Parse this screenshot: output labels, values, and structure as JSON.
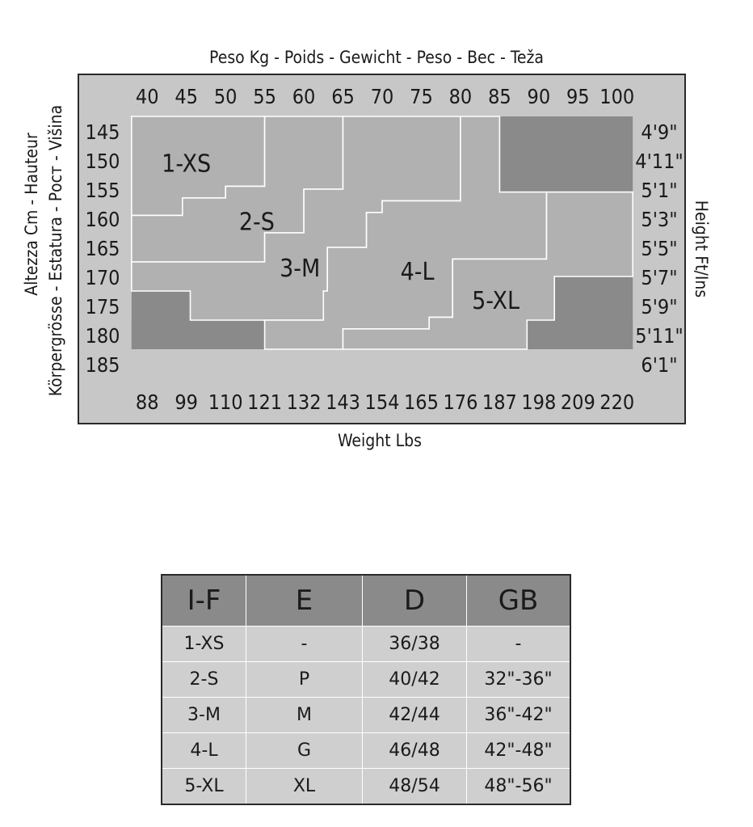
{
  "chart_data": {
    "type": "heatmap",
    "title": "Peso Kg - Poids - Gewicht - Peso - Bec - Teža",
    "xlabel": "Weight Lbs",
    "ylabel_left_1": "Altezza Cm - Hauteur",
    "ylabel_left_2": "Körpergrösse - Estatura - Рост - Višina",
    "ylabel_right": "Height Ft/Ins",
    "x_kg_ticks": [
      "40",
      "45",
      "50",
      "55",
      "60",
      "65",
      "70",
      "75",
      "80",
      "85",
      "90",
      "95",
      "100"
    ],
    "x_kg_range": [
      37.5,
      102.5
    ],
    "x_lbs_ticks": [
      {
        "kg": 40,
        "label": "88"
      },
      {
        "kg": 45,
        "label": "99"
      },
      {
        "kg": 50,
        "label": "110"
      },
      {
        "kg": 55,
        "label": "121"
      },
      {
        "kg": 60,
        "label": "132"
      },
      {
        "kg": 65,
        "label": "143"
      },
      {
        "kg": 70,
        "label": "154"
      },
      {
        "kg": 75,
        "label": "165"
      },
      {
        "kg": 80,
        "label": "176"
      },
      {
        "kg": 85,
        "label": "187"
      },
      {
        "kg": 90,
        "label": "198"
      },
      {
        "kg": 95,
        "label": "209"
      },
      {
        "kg": 100,
        "label": "220"
      }
    ],
    "y_cm_ticks": [
      "145",
      "150",
      "155",
      "160",
      "165",
      "170",
      "175",
      "180",
      "185"
    ],
    "y_cm_range": [
      142.5,
      187.5
    ],
    "y_ftin_ticks": [
      "4'9\"",
      "4'11\"",
      "5'1\"",
      "5'3\"",
      "5'5\"",
      "5'7\"",
      "5'9\"",
      "5'11\"",
      "6'1\""
    ],
    "regions": [
      {
        "name": "1-XS",
        "label_pos": [
          45,
          150.5
        ],
        "points": [
          [
            38,
            142.5
          ],
          [
            55,
            142.5
          ],
          [
            55,
            154.5
          ],
          [
            50,
            154.5
          ],
          [
            50,
            156.5
          ],
          [
            44.5,
            156.5
          ],
          [
            44.5,
            159.5
          ],
          [
            38,
            159.5
          ]
        ]
      },
      {
        "name": "2-S",
        "label_pos": [
          54,
          160.5
        ],
        "points": [
          [
            38,
            159.5
          ],
          [
            44.5,
            159.5
          ],
          [
            44.5,
            156.5
          ],
          [
            50,
            156.5
          ],
          [
            50,
            154.5
          ],
          [
            55,
            154.5
          ],
          [
            55,
            142.5
          ],
          [
            65,
            142.5
          ],
          [
            65,
            155
          ],
          [
            60,
            155
          ],
          [
            60,
            162.5
          ],
          [
            55,
            162.5
          ],
          [
            55,
            167.5
          ],
          [
            38,
            167.5
          ]
        ]
      },
      {
        "name": "3-M",
        "label_pos": [
          59.5,
          168.5
        ],
        "points": [
          [
            38,
            167.5
          ],
          [
            55,
            167.5
          ],
          [
            55,
            162.5
          ],
          [
            60,
            162.5
          ],
          [
            60,
            155
          ],
          [
            65,
            155
          ],
          [
            65,
            142.5
          ],
          [
            80,
            142.5
          ],
          [
            80,
            157
          ],
          [
            70,
            157
          ],
          [
            70,
            159
          ],
          [
            68,
            159
          ],
          [
            68,
            165
          ],
          [
            63,
            165
          ],
          [
            63,
            172.5
          ],
          [
            62.5,
            172.5
          ],
          [
            62.5,
            177.5
          ],
          [
            45.5,
            177.5
          ],
          [
            45.5,
            172.5
          ],
          [
            38,
            172.5
          ]
        ]
      },
      {
        "name": "4-L",
        "label_pos": [
          74.5,
          169
        ],
        "points": [
          [
            80,
            142.5
          ],
          [
            85,
            142.5
          ],
          [
            85,
            155.5
          ],
          [
            91,
            155.5
          ],
          [
            91,
            167
          ],
          [
            79,
            167
          ],
          [
            79,
            177
          ],
          [
            76,
            177
          ],
          [
            76,
            179
          ],
          [
            65,
            179
          ],
          [
            65,
            182.5
          ],
          [
            55,
            182.5
          ],
          [
            55,
            177.5
          ],
          [
            62.5,
            177.5
          ],
          [
            62.5,
            172.5
          ],
          [
            63,
            172.5
          ],
          [
            63,
            165
          ],
          [
            68,
            165
          ],
          [
            68,
            159
          ],
          [
            70,
            159
          ],
          [
            70,
            157
          ],
          [
            80,
            157
          ]
        ]
      },
      {
        "name": "5-XL",
        "label_pos": [
          84.5,
          174
        ],
        "points": [
          [
            91,
            155.5
          ],
          [
            102,
            155.5
          ],
          [
            102,
            170
          ],
          [
            92,
            170
          ],
          [
            92,
            177.5
          ],
          [
            88.5,
            177.5
          ],
          [
            88.5,
            182.5
          ],
          [
            65,
            182.5
          ],
          [
            65,
            179
          ],
          [
            76,
            179
          ],
          [
            76,
            177
          ],
          [
            79,
            177
          ],
          [
            79,
            167
          ],
          [
            91,
            167
          ]
        ]
      }
    ],
    "excluded_blocks": [
      {
        "x": [
          85,
          102
        ],
        "y": [
          142.5,
          155.5
        ]
      },
      {
        "x": [
          92,
          102
        ],
        "y": [
          170,
          182.5
        ]
      },
      {
        "x": [
          88.5,
          102
        ],
        "y": [
          177.5,
          182.5
        ]
      },
      {
        "x": [
          38,
          45.5
        ],
        "y": [
          172.5,
          182.5
        ]
      },
      {
        "x": [
          38,
          55
        ],
        "y": [
          177.5,
          182.5
        ]
      }
    ],
    "colors": {
      "frame_bg": "#c7c7c7",
      "region": "#b1b1b1",
      "excluded": "#8a8a8a",
      "line": "#ffffff",
      "border": "#2a2a2a"
    }
  },
  "size_table": {
    "headers": [
      "I-F",
      "E",
      "D",
      "GB"
    ],
    "rows": [
      [
        "1-XS",
        "-",
        "36/38",
        "-"
      ],
      [
        "2-S",
        "P",
        "40/42",
        "32\"-36\""
      ],
      [
        "3-M",
        "M",
        "42/44",
        "36\"-42\""
      ],
      [
        "4-L",
        "G",
        "46/48",
        "42\"-48\""
      ],
      [
        "5-XL",
        "XL",
        "48/54",
        "48\"-56\""
      ]
    ]
  }
}
